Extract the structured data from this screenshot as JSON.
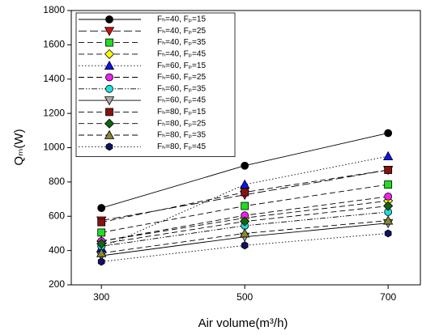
{
  "chart_data": {
    "type": "line",
    "x_label": "Air volume(m³/h)",
    "y_label": "Qₘ(W)",
    "x": [
      300,
      500,
      700
    ],
    "xlim": [
      258,
      745
    ],
    "xticks": [
      300,
      500,
      700
    ],
    "ylim": [
      200,
      1800
    ],
    "yticks": [
      200,
      400,
      600,
      800,
      1000,
      1200,
      1400,
      1600,
      1800
    ],
    "legend": "upper left",
    "series": [
      {
        "name": "Fₕ=40, Fₚ=15",
        "color": "#000000",
        "marker": "circle",
        "line_style": "solid",
        "values": [
          648,
          895,
          1085
        ]
      },
      {
        "name": "Fₕ=40, Fₚ=25",
        "color": "#cc1111",
        "marker": "triangle-down",
        "line_style": "longdash",
        "values": [
          575,
          725,
          870
        ]
      },
      {
        "name": "Fₕ=40, Fₚ=35",
        "color": "#22dd22",
        "marker": "square",
        "line_style": "dashed",
        "values": [
          505,
          660,
          785
        ]
      },
      {
        "name": "Fₕ=40, Fₚ=45",
        "color": "#ffff00",
        "marker": "diamond",
        "line_style": "dashed",
        "values": [
          455,
          590,
          690
        ]
      },
      {
        "name": "Fₕ=60, Fₚ=15",
        "color": "#1111ee",
        "marker": "triangle-up",
        "line_style": "dotted",
        "values": [
          415,
          785,
          950
        ]
      },
      {
        "name": "Fₕ=60, Fₚ=25",
        "color": "#ee22ee",
        "marker": "circle",
        "line_style": "dashed",
        "values": [
          455,
          605,
          715
        ]
      },
      {
        "name": "Fₕ=60, Fₚ=35",
        "color": "#22dddd",
        "marker": "circle",
        "line_style": "dashdotdot",
        "values": [
          425,
          545,
          625
        ]
      },
      {
        "name": "Fₕ=60, Fₚ=45",
        "color": "#aaaaaa",
        "marker": "triangle-down",
        "line_style": "solid",
        "values": [
          370,
          480,
          560
        ]
      },
      {
        "name": "Fₕ=80, Fₚ=15",
        "color": "#881111",
        "marker": "square",
        "line_style": "dashed",
        "values": [
          565,
          740,
          870
        ]
      },
      {
        "name": "Fₕ=80, Fₚ=25",
        "color": "#116611",
        "marker": "diamond",
        "line_style": "dashed",
        "values": [
          440,
          570,
          660
        ]
      },
      {
        "name": "Fₕ=80, Fₚ=35",
        "color": "#888833",
        "marker": "triangle-up",
        "line_style": "dashed",
        "values": [
          385,
          500,
          575
        ]
      },
      {
        "name": "Fₕ=80, Fₚ=45",
        "color": "#111166",
        "marker": "hexagon",
        "line_style": "dotted",
        "values": [
          335,
          430,
          500
        ]
      }
    ]
  }
}
